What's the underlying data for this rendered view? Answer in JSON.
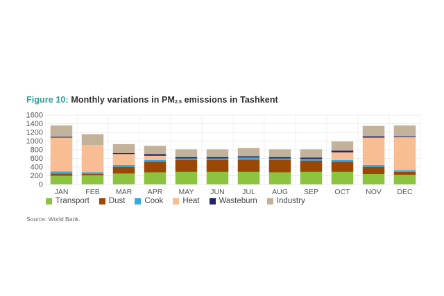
{
  "title": {
    "figure_label": "Figure 10:",
    "text_before_sub": " Monthly variations in PM",
    "subscript": "2.5",
    "text_after_sub": " emissions in Tashkent"
  },
  "source": "Source: World Bank.",
  "chart_data": {
    "type": "bar",
    "stacked": true,
    "title": "Figure 10: Monthly variations in PM2.5 emissions in Tashkent",
    "xlabel": "",
    "ylabel": "",
    "ylim": [
      0,
      1600
    ],
    "yticks": [
      0,
      200,
      400,
      600,
      800,
      1000,
      1200,
      1400,
      1600
    ],
    "grid": true,
    "legend_position": "bottom",
    "categories": [
      "JAN",
      "FEB",
      "MAR",
      "APR",
      "MAY",
      "JUN",
      "JUL",
      "AUG",
      "SEP",
      "OCT",
      "NOV",
      "DEC"
    ],
    "series": [
      {
        "name": "Transport",
        "color": "#8cc43f",
        "values": [
          200,
          210,
          250,
          280,
          290,
          290,
          290,
          280,
          290,
          290,
          240,
          220
        ]
      },
      {
        "name": "Dust",
        "color": "#9b4705",
        "values": [
          50,
          30,
          150,
          240,
          270,
          270,
          280,
          280,
          260,
          230,
          160,
          70
        ]
      },
      {
        "name": "Cook",
        "color": "#3aa8dc",
        "values": [
          50,
          40,
          50,
          40,
          40,
          40,
          50,
          40,
          40,
          40,
          50,
          40
        ]
      },
      {
        "name": "Heat",
        "color": "#f8bd92",
        "values": [
          780,
          630,
          250,
          100,
          0,
          0,
          0,
          0,
          0,
          180,
          630,
          760
        ]
      },
      {
        "name": "Wasteburn",
        "color": "#232366",
        "values": [
          20,
          0,
          20,
          40,
          30,
          30,
          30,
          30,
          30,
          40,
          30,
          20
        ]
      },
      {
        "name": "Industry",
        "color": "#c2b29a",
        "values": [
          260,
          250,
          210,
          190,
          180,
          180,
          190,
          180,
          190,
          210,
          240,
          250
        ]
      }
    ]
  }
}
